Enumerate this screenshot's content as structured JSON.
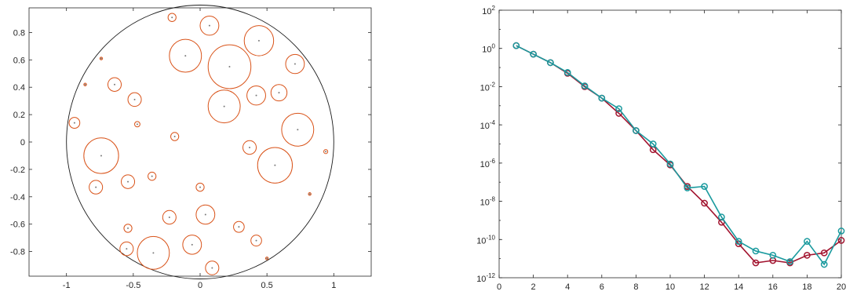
{
  "chart_data": [
    {
      "type": "scatter",
      "title": "",
      "xlabel": "",
      "ylabel": "",
      "xlim": [
        -1.28,
        1.28
      ],
      "ylim": [
        -0.98,
        0.98
      ],
      "xticks": [
        -1,
        -0.5,
        0,
        0.5,
        1
      ],
      "xtick_labels": [
        "-1",
        "-0.5",
        "0",
        "0.5",
        "1"
      ],
      "yticks": [
        -0.8,
        -0.6,
        -0.4,
        -0.2,
        0,
        0.2,
        0.4,
        0.6,
        0.8
      ],
      "ytick_labels": [
        "-0.8",
        "-0.6",
        "-0.4",
        "-0.2",
        "0",
        "0.2",
        "0.4",
        "0.6",
        "0.8"
      ],
      "unit_circle": {
        "cx": 0,
        "cy": 0,
        "r": 1,
        "color": "#1a1a1a"
      },
      "circle_color": "#d95319",
      "center_color": "#7a7a7a",
      "circles": [
        {
          "x": 0.07,
          "y": 0.85,
          "r": 0.07
        },
        {
          "x": -0.21,
          "y": 0.91,
          "r": 0.03
        },
        {
          "x": 0.44,
          "y": 0.74,
          "r": 0.11
        },
        {
          "x": -0.11,
          "y": 0.63,
          "r": 0.12
        },
        {
          "x": 0.22,
          "y": 0.55,
          "r": 0.16
        },
        {
          "x": 0.71,
          "y": 0.57,
          "r": 0.07
        },
        {
          "x": -0.74,
          "y": 0.61,
          "r": 0.01
        },
        {
          "x": -0.86,
          "y": 0.42,
          "r": 0.01
        },
        {
          "x": -0.64,
          "y": 0.42,
          "r": 0.05
        },
        {
          "x": -0.49,
          "y": 0.31,
          "r": 0.05
        },
        {
          "x": 0.42,
          "y": 0.34,
          "r": 0.07
        },
        {
          "x": 0.59,
          "y": 0.36,
          "r": 0.06
        },
        {
          "x": 0.18,
          "y": 0.26,
          "r": 0.12
        },
        {
          "x": -0.94,
          "y": 0.14,
          "r": 0.04
        },
        {
          "x": -0.47,
          "y": 0.13,
          "r": 0.02
        },
        {
          "x": 0.73,
          "y": 0.09,
          "r": 0.12
        },
        {
          "x": -0.19,
          "y": 0.04,
          "r": 0.03
        },
        {
          "x": 0.37,
          "y": -0.04,
          "r": 0.05
        },
        {
          "x": 0.94,
          "y": -0.07,
          "r": 0.015
        },
        {
          "x": -0.74,
          "y": -0.1,
          "r": 0.13
        },
        {
          "x": 0.56,
          "y": -0.17,
          "r": 0.13
        },
        {
          "x": -0.36,
          "y": -0.25,
          "r": 0.03
        },
        {
          "x": -0.54,
          "y": -0.29,
          "r": 0.05
        },
        {
          "x": -0.78,
          "y": -0.33,
          "r": 0.05
        },
        {
          "x": 0.0,
          "y": -0.33,
          "r": 0.03
        },
        {
          "x": 0.82,
          "y": -0.38,
          "r": 0.01
        },
        {
          "x": -0.23,
          "y": -0.55,
          "r": 0.05
        },
        {
          "x": 0.04,
          "y": -0.53,
          "r": 0.07
        },
        {
          "x": 0.29,
          "y": -0.62,
          "r": 0.04
        },
        {
          "x": -0.54,
          "y": -0.63,
          "r": 0.03
        },
        {
          "x": 0.42,
          "y": -0.72,
          "r": 0.04
        },
        {
          "x": -0.55,
          "y": -0.78,
          "r": 0.05
        },
        {
          "x": -0.35,
          "y": -0.81,
          "r": 0.12
        },
        {
          "x": -0.06,
          "y": -0.75,
          "r": 0.07
        },
        {
          "x": 0.5,
          "y": -0.85,
          "r": 0.01
        },
        {
          "x": 0.09,
          "y": -0.92,
          "r": 0.05
        }
      ]
    },
    {
      "type": "line",
      "title": "",
      "xlabel": "",
      "ylabel": "",
      "xlim": [
        0,
        20
      ],
      "ylim_log10": [
        -12,
        2
      ],
      "y_scale": "log",
      "xticks": [
        0,
        2,
        4,
        6,
        8,
        10,
        12,
        14,
        16,
        18,
        20
      ],
      "xtick_labels": [
        "0",
        "2",
        "4",
        "6",
        "8",
        "10",
        "12",
        "14",
        "16",
        "18",
        "20"
      ],
      "yticks_log10": [
        2,
        0,
        -2,
        -4,
        -6,
        -8,
        -10,
        -12
      ],
      "ytick_labels": [
        {
          "base": "10",
          "exp": "2"
        },
        {
          "base": "10",
          "exp": "0"
        },
        {
          "base": "10",
          "exp": "-2"
        },
        {
          "base": "10",
          "exp": "-4"
        },
        {
          "base": "10",
          "exp": "-6"
        },
        {
          "base": "10",
          "exp": "-8"
        },
        {
          "base": "10",
          "exp": "-10"
        },
        {
          "base": "10",
          "exp": "-12"
        }
      ],
      "x": [
        1,
        2,
        3,
        4,
        5,
        6,
        7,
        8,
        9,
        10,
        11,
        12,
        13,
        14,
        15,
        16,
        17,
        18,
        19,
        20
      ],
      "series": [
        {
          "color": "#a2142f",
          "values": [
            1.4,
            0.5,
            0.18,
            0.05,
            0.01,
            0.0025,
            0.0004,
            5e-05,
            5e-06,
            8e-07,
            6e-08,
            8e-09,
            8e-10,
            6e-11,
            6e-12,
            8e-12,
            6e-12,
            1.5e-11,
            2e-11,
            9e-11
          ]
        },
        {
          "color": "#1a9a9e",
          "values": [
            1.4,
            0.5,
            0.18,
            0.055,
            0.011,
            0.0025,
            0.0007,
            5e-05,
            1e-05,
            9e-07,
            5e-08,
            6e-08,
            1.5e-09,
            8e-11,
            2.5e-11,
            1.5e-11,
            7e-12,
            8e-11,
            5e-12,
            2.8e-10
          ]
        }
      ]
    }
  ]
}
